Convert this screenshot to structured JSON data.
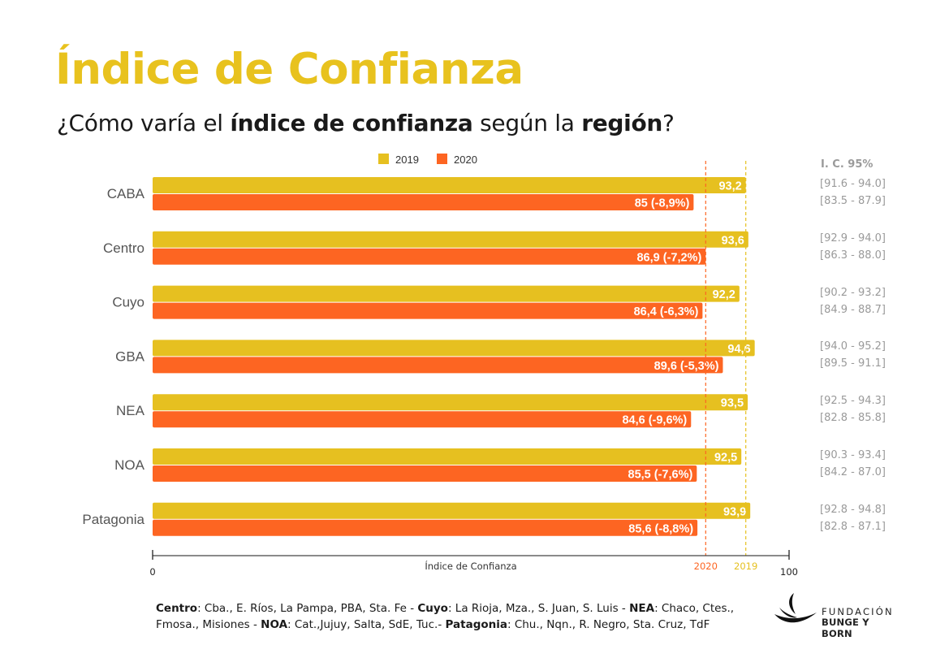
{
  "header": {
    "title": "Índice de Confianza",
    "subtitle_parts": [
      {
        "text": "¿Cómo varía el ",
        "bold": false
      },
      {
        "text": "índice de confianza",
        "bold": true
      },
      {
        "text": " según la ",
        "bold": false
      },
      {
        "text": "región",
        "bold": true
      },
      {
        "text": "?",
        "bold": false
      }
    ]
  },
  "colors": {
    "title": "#e8c21e",
    "series_2019": "#e6c020",
    "series_2020": "#fd6522",
    "ci_text": "#9a9a9a",
    "category_text": "#555555"
  },
  "chart_data": {
    "type": "bar",
    "orientation": "horizontal",
    "title": "",
    "xlabel": "Índice de Confianza",
    "ylabel": "",
    "xlim": [
      0,
      100
    ],
    "x_ticks": [
      "0",
      "100"
    ],
    "grid": false,
    "legend": {
      "placement": "top-center",
      "entries": [
        "2019",
        "2020"
      ]
    },
    "categories": [
      "CABA",
      "Centro",
      "Cuyo",
      "GBA",
      "NEA",
      "NOA",
      "Patagonia"
    ],
    "series": [
      {
        "name": "2019",
        "values": [
          93.2,
          93.6,
          92.2,
          94.6,
          93.5,
          92.5,
          93.9
        ],
        "labels": [
          "93,2",
          "93,6",
          "92,2",
          "94,6",
          "93,5",
          "92,5",
          "93,9"
        ],
        "ci_95": [
          "[91.6 - 94.0]",
          "[92.9 - 94.0]",
          "[90.2 - 93.2]",
          "[94.0 - 95.2]",
          "[92.5 - 94.3]",
          "[90.3 - 93.4]",
          "[92.8 - 94.8]"
        ]
      },
      {
        "name": "2020",
        "values": [
          85,
          86.9,
          86.4,
          89.6,
          84.6,
          85.5,
          85.6
        ],
        "labels": [
          "85 (-8,9%)",
          "86,9 (-7,2%)",
          "86,4 (-6,3%)",
          "89,6 (-5,3%)",
          "84,6 (-9,6%)",
          "85,5 (-7,6%)",
          "85,6 (-8,8%)"
        ],
        "ci_95": [
          "[83.5 - 87.9]",
          "[86.3 - 88.0]",
          "[84.9 - 88.7]",
          "[89.5 - 91.1]",
          "[82.8 - 85.8]",
          "[84.2 - 87.0]",
          "[82.8 - 87.1]"
        ]
      }
    ],
    "reference_lines": [
      {
        "label": "2020",
        "value": 86.9,
        "style": "dashed"
      },
      {
        "label": "2019",
        "value": 93.2,
        "style": "dashed"
      }
    ],
    "ci_header": "I. C. 95%"
  },
  "footnote": {
    "parts": [
      {
        "text": "Centro",
        "bold": true
      },
      {
        "text": ": Cba., E. Ríos, La Pampa, PBA, Sta. Fe - ",
        "bold": false
      },
      {
        "text": "Cuyo",
        "bold": true
      },
      {
        "text": ": La Rioja, Mza., S. Juan, S. Luis - ",
        "bold": false
      },
      {
        "text": "NEA",
        "bold": true
      },
      {
        "text": ": Chaco, Ctes., Fmosa., Misiones - ",
        "bold": false
      },
      {
        "text": "NOA",
        "bold": true
      },
      {
        "text": ": Cat.,Jujuy, Salta, SdE, Tuc.- ",
        "bold": false
      },
      {
        "text": "Patagonia",
        "bold": true
      },
      {
        "text": ": Chu., Nqn., R. Negro, Sta. Cruz, TdF",
        "bold": false
      }
    ]
  },
  "logo": {
    "line1": "FUNDACIÓN",
    "line2": "BUNGE Y BORN",
    "icon": "flame-leaf-icon"
  }
}
